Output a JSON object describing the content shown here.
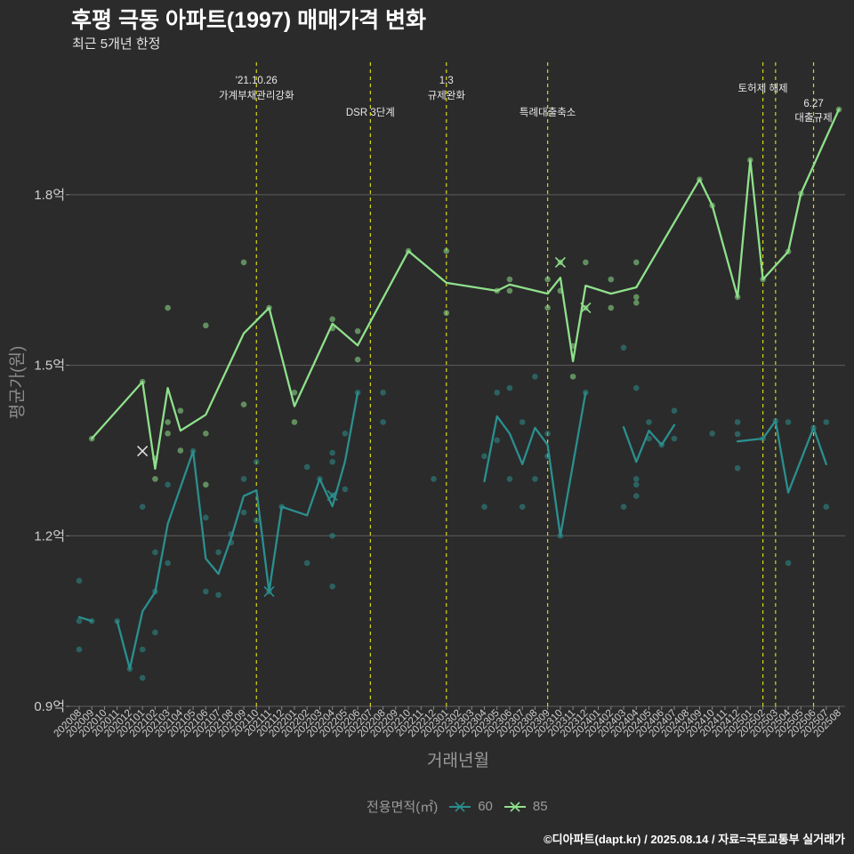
{
  "chart_data": {
    "type": "line",
    "title": "후평 극동 아파트(1997) 매매가격 변화",
    "subtitle": "최근 5개년 한정",
    "xlabel": "거래년월",
    "ylabel": "평균가(원)",
    "caption": "©디아파트(dapt.kr) / 2025.08.14 / 자료=국토교통부 실거래가",
    "ylim": [
      0.9,
      2.033
    ],
    "grid": true,
    "y_ticks": [
      {
        "value": 0.9,
        "label": "0.9억"
      },
      {
        "value": 1.2,
        "label": "1.2억"
      },
      {
        "value": 1.5,
        "label": "1.5억"
      },
      {
        "value": 1.8,
        "label": "1.8억"
      }
    ],
    "x_categories": [
      "202008",
      "202009",
      "202010",
      "202011",
      "202012",
      "202101",
      "202102",
      "202103",
      "202104",
      "202105",
      "202106",
      "202107",
      "202108",
      "202109",
      "202110",
      "202111",
      "202112",
      "202201",
      "202202",
      "202203",
      "202204",
      "202205",
      "202206",
      "202207",
      "202208",
      "202209",
      "202210",
      "202211",
      "202212",
      "202301",
      "202302",
      "202303",
      "202304",
      "202305",
      "202306",
      "202307",
      "202308",
      "202309",
      "202310",
      "202311",
      "202312",
      "202401",
      "202402",
      "202403",
      "202404",
      "202405",
      "202406",
      "202407",
      "202408",
      "202409",
      "202410",
      "202411",
      "202412",
      "202501",
      "202502",
      "202503",
      "202504",
      "202505",
      "202506",
      "202507",
      "202508"
    ],
    "legend": {
      "title": "전용면적(㎡)",
      "position": "bottom"
    },
    "annotation_color": "#d6d61c",
    "annotations": [
      {
        "x": "202110",
        "lines": [
          "'21.10.26",
          "가계부채관리강화"
        ]
      },
      {
        "x": "202207",
        "lines": [
          "DSR 3단계"
        ]
      },
      {
        "x": "202301",
        "lines": [
          "1.3",
          "규제완화"
        ]
      },
      {
        "x": "202309",
        "lines": [
          "특례대출축소"
        ]
      },
      {
        "x": "202502",
        "lines": [
          "토허제 해제"
        ]
      },
      {
        "x": "202503",
        "lines": []
      },
      {
        "x": "202506",
        "lines": [
          "6.27",
          "대출규제"
        ]
      }
    ],
    "series": [
      {
        "name": "60",
        "color": "#2b8f8e",
        "line_segments": [
          [
            [
              "202008",
              1.057
            ],
            [
              "202009",
              1.05
            ]
          ],
          [
            [
              "202011",
              1.05
            ],
            [
              "202012",
              0.966
            ],
            [
              "202101",
              1.067
            ],
            [
              "202102",
              1.101
            ],
            [
              "202103",
              1.221
            ],
            [
              "202105",
              1.349
            ],
            [
              "202106",
              1.16
            ],
            [
              "202107",
              1.133
            ],
            [
              "202108",
              1.196
            ],
            [
              "202109",
              1.27
            ],
            [
              "202110",
              1.28
            ],
            [
              "202111",
              1.102
            ],
            [
              "202112",
              1.251
            ],
            [
              "202202",
              1.236
            ],
            [
              "202203",
              1.3
            ],
            [
              "202204",
              1.252
            ],
            [
              "202205",
              1.331
            ],
            [
              "202206",
              1.452
            ]
          ],
          [
            [
              "202304",
              1.296
            ],
            [
              "202305",
              1.41
            ],
            [
              "202306",
              1.38
            ],
            [
              "202307",
              1.326
            ],
            [
              "202308",
              1.39
            ],
            [
              "202309",
              1.36
            ],
            [
              "202310",
              1.2
            ],
            [
              "202312",
              1.452
            ]
          ],
          [
            [
              "202403",
              1.391
            ],
            [
              "202404",
              1.33
            ],
            [
              "202405",
              1.385
            ],
            [
              "202406",
              1.36
            ],
            [
              "202407",
              1.395
            ]
          ],
          [
            [
              "202412",
              1.366
            ],
            [
              "202502",
              1.371
            ],
            [
              "202503",
              1.402
            ],
            [
              "202504",
              1.276
            ],
            [
              "202506",
              1.39
            ],
            [
              "202507",
              1.326
            ]
          ]
        ],
        "points": [
          [
            "202008",
            1.121
          ],
          [
            "202008",
            1.05
          ],
          [
            "202008",
            1.0
          ],
          [
            "202009",
            1.05
          ],
          [
            "202011",
            1.05
          ],
          [
            "202012",
            0.966
          ],
          [
            "202101",
            1.251
          ],
          [
            "202101",
            1.0
          ],
          [
            "202101",
            0.95
          ],
          [
            "202102",
            1.171
          ],
          [
            "202102",
            1.102
          ],
          [
            "202102",
            1.03
          ],
          [
            "202103",
            1.152
          ],
          [
            "202103",
            1.29
          ],
          [
            "202105",
            1.349
          ],
          [
            "202106",
            1.232
          ],
          [
            "202106",
            1.102
          ],
          [
            "202107",
            1.171
          ],
          [
            "202107",
            1.096
          ],
          [
            "202108",
            1.203
          ],
          [
            "202108",
            1.188
          ],
          [
            "202109",
            1.241
          ],
          [
            "202109",
            1.3
          ],
          [
            "202110",
            1.33
          ],
          [
            "202110",
            1.227
          ],
          [
            "202111",
            1.102
          ],
          [
            "202112",
            1.251
          ],
          [
            "202202",
            1.321
          ],
          [
            "202202",
            1.152
          ],
          [
            "202203",
            1.3
          ],
          [
            "202204",
            1.346
          ],
          [
            "202204",
            1.33
          ],
          [
            "202204",
            1.271
          ],
          [
            "202204",
            1.2
          ],
          [
            "202204",
            1.111
          ],
          [
            "202205",
            1.38
          ],
          [
            "202205",
            1.282
          ],
          [
            "202206",
            1.452
          ],
          [
            "202208",
            1.452
          ],
          [
            "202208",
            1.4
          ],
          [
            "202212",
            1.3
          ],
          [
            "202304",
            1.34
          ],
          [
            "202304",
            1.251
          ],
          [
            "202305",
            1.452
          ],
          [
            "202305",
            1.368
          ],
          [
            "202306",
            1.46
          ],
          [
            "202306",
            1.3
          ],
          [
            "202307",
            1.4
          ],
          [
            "202307",
            1.251
          ],
          [
            "202308",
            1.48
          ],
          [
            "202308",
            1.3
          ],
          [
            "202309",
            1.38
          ],
          [
            "202309",
            1.34
          ],
          [
            "202310",
            1.2
          ],
          [
            "202312",
            1.452
          ],
          [
            "202403",
            1.531
          ],
          [
            "202403",
            1.251
          ],
          [
            "202404",
            1.46
          ],
          [
            "202404",
            1.3
          ],
          [
            "202404",
            1.29
          ],
          [
            "202404",
            1.27
          ],
          [
            "202405",
            1.4
          ],
          [
            "202405",
            1.371
          ],
          [
            "202406",
            1.36
          ],
          [
            "202407",
            1.42
          ],
          [
            "202407",
            1.371
          ],
          [
            "202410",
            1.38
          ],
          [
            "202412",
            1.4
          ],
          [
            "202412",
            1.379
          ],
          [
            "202412",
            1.319
          ],
          [
            "202502",
            1.371
          ],
          [
            "202503",
            1.402
          ],
          [
            "202504",
            1.4
          ],
          [
            "202504",
            1.152
          ],
          [
            "202506",
            1.39
          ],
          [
            "202507",
            1.4
          ],
          [
            "202507",
            1.251
          ]
        ]
      },
      {
        "name": "85",
        "color": "#8fe08b",
        "line_segments": [
          [
            [
              "202009",
              1.371
            ],
            [
              "202101",
              1.471
            ],
            [
              "202102",
              1.318
            ],
            [
              "202103",
              1.46
            ],
            [
              "202104",
              1.385
            ],
            [
              "202106",
              1.413
            ],
            [
              "202109",
              1.556
            ],
            [
              "202111",
              1.601
            ],
            [
              "202201",
              1.428
            ],
            [
              "202204",
              1.573
            ],
            [
              "202206",
              1.535
            ],
            [
              "202210",
              1.701
            ],
            [
              "202301",
              1.645
            ],
            [
              "202305",
              1.631
            ],
            [
              "202306",
              1.642
            ],
            [
              "202309",
              1.626
            ],
            [
              "202310",
              1.654
            ],
            [
              "202311",
              1.507
            ],
            [
              "202312",
              1.64
            ],
            [
              "202402",
              1.626
            ],
            [
              "202404",
              1.637
            ],
            [
              "202409",
              1.827
            ],
            [
              "202410",
              1.781
            ],
            [
              "202412",
              1.62
            ],
            [
              "202501",
              1.861
            ],
            [
              "202502",
              1.651
            ],
            [
              "202504",
              1.7
            ],
            [
              "202505",
              1.802
            ],
            [
              "202508",
              1.95
            ]
          ]
        ],
        "points": [
          [
            "202009",
            1.371
          ],
          [
            "202101",
            1.471
          ],
          [
            "202102",
            1.3
          ],
          [
            "202102",
            1.336
          ],
          [
            "202103",
            1.601
          ],
          [
            "202103",
            1.4
          ],
          [
            "202103",
            1.38
          ],
          [
            "202104",
            1.42
          ],
          [
            "202104",
            1.35
          ],
          [
            "202106",
            1.57
          ],
          [
            "202106",
            1.38
          ],
          [
            "202106",
            1.29
          ],
          [
            "202109",
            1.681
          ],
          [
            "202109",
            1.431
          ],
          [
            "202111",
            1.601
          ],
          [
            "202201",
            1.452
          ],
          [
            "202201",
            1.4
          ],
          [
            "202204",
            1.581
          ],
          [
            "202204",
            1.565
          ],
          [
            "202206",
            1.56
          ],
          [
            "202206",
            1.51
          ],
          [
            "202210",
            1.701
          ],
          [
            "202301",
            1.701
          ],
          [
            "202301",
            1.592
          ],
          [
            "202305",
            1.631
          ],
          [
            "202306",
            1.651
          ],
          [
            "202306",
            1.631
          ],
          [
            "202309",
            1.651
          ],
          [
            "202309",
            1.601
          ],
          [
            "202310",
            1.681
          ],
          [
            "202310",
            1.631
          ],
          [
            "202311",
            1.48
          ],
          [
            "202311",
            1.534
          ],
          [
            "202312",
            1.681
          ],
          [
            "202312",
            1.601
          ],
          [
            "202402",
            1.651
          ],
          [
            "202402",
            1.601
          ],
          [
            "202404",
            1.681
          ],
          [
            "202404",
            1.62
          ],
          [
            "202404",
            1.61
          ],
          [
            "202409",
            1.827
          ],
          [
            "202410",
            1.781
          ],
          [
            "202412",
            1.62
          ],
          [
            "202501",
            1.861
          ],
          [
            "202502",
            1.651
          ],
          [
            "202504",
            1.7
          ],
          [
            "202505",
            1.802
          ],
          [
            "202508",
            1.95
          ]
        ]
      }
    ],
    "x_marks": [
      {
        "x": "202101",
        "y": 1.349,
        "color": "#dedede"
      },
      {
        "x": "202111",
        "y": 1.102,
        "color": "#2b8f8e"
      },
      {
        "x": "202204",
        "y": 1.271,
        "color": "#2b8f8e"
      },
      {
        "x": "202310",
        "y": 1.681,
        "color": "#8fe08b"
      },
      {
        "x": "202312",
        "y": 1.601,
        "color": "#8fe08b"
      }
    ]
  }
}
